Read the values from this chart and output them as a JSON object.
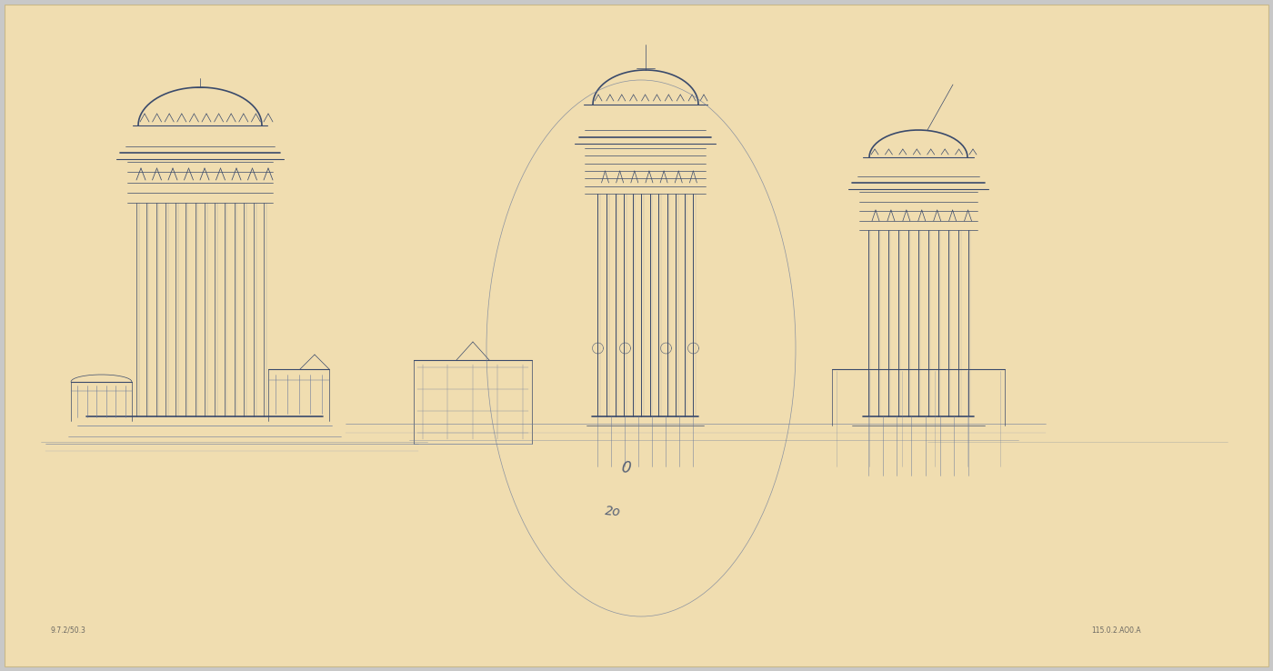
{
  "bg_color": "#f5e6c8",
  "paper_color": "#f0ddb0",
  "border_color": "#e8d09a",
  "sketch_color": "#3a4a6b",
  "sketch_color_light": "#6a7a9b",
  "sketch_color_faint": "#8a9ab8",
  "outer_bg": "#c8c8c8",
  "annotation_bottom_left": "9.7.2/50.3",
  "annotation_bottom_right": "115.0.2.AO0.A",
  "figsize": [
    14.0,
    7.38
  ],
  "dpi": 100
}
